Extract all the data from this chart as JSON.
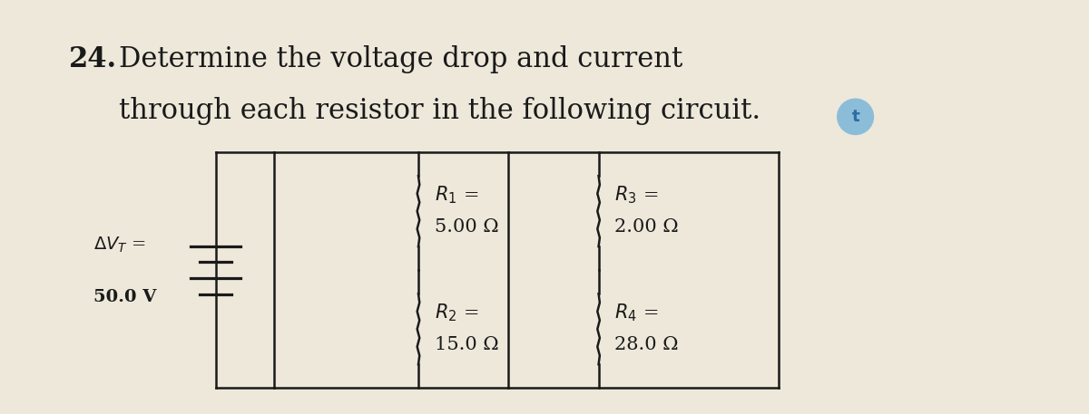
{
  "background_color": "#ede8da",
  "title_number": "24.",
  "title_line1": "Determine the voltage drop and current",
  "title_line2": "through each resistor in the following circuit.",
  "title_color": "#1a1a1a",
  "r1_label": "R",
  "r1_sub": "1",
  "r1_value": "5.00 Ω",
  "r2_label": "R",
  "r2_sub": "2",
  "r2_value": "15.0 Ω",
  "r3_label": "R",
  "r3_sub": "3",
  "r3_value": "2.00 Ω",
  "r4_label": "R",
  "r4_sub": "4",
  "r4_value": "28.0 Ω",
  "vt_line1": "ΔVT =",
  "vt_line2": "50.0 V",
  "t_circle_color": "#8bbdd9",
  "t_text_color": "#2e6da4",
  "wire_color": "#1a1a1a",
  "wire_lw": 1.8,
  "res_amplitude": 0.013,
  "res_n_zags": 8
}
